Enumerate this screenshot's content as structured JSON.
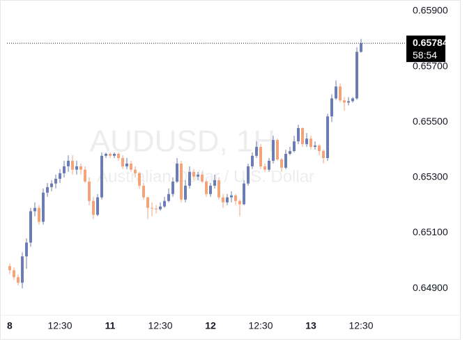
{
  "chart_data": {
    "type": "candlestick",
    "watermark_title": "AUDUSD, 1H",
    "watermark_subtitle": "Australian Dollar / U.S. Dollar",
    "categories": [
      "8",
      null,
      null,
      null,
      null,
      null,
      null,
      null,
      null,
      null,
      null,
      null,
      "12:30",
      null,
      null,
      null,
      null,
      null,
      null,
      null,
      null,
      null,
      null,
      null,
      "11",
      null,
      null,
      null,
      null,
      null,
      null,
      null,
      null,
      null,
      null,
      null,
      "12:30",
      null,
      null,
      null,
      null,
      null,
      null,
      null,
      null,
      null,
      null,
      null,
      "12",
      null,
      null,
      null,
      null,
      null,
      null,
      null,
      null,
      null,
      null,
      null,
      "12:30",
      null,
      null,
      null,
      null,
      null,
      null,
      null,
      null,
      null,
      null,
      null,
      "13",
      null,
      null,
      null,
      null,
      null,
      null,
      null,
      null,
      null,
      null,
      null,
      "12:30"
    ],
    "open": [
      0.6498,
      0.64965,
      0.6494,
      0.6492,
      0.65015,
      0.65065,
      0.65178,
      0.6519,
      0.6514,
      0.65245,
      0.65265,
      0.65278,
      0.65295,
      0.65315,
      0.6534,
      0.6536,
      0.65328,
      0.6534,
      0.65328,
      0.65285,
      0.65215,
      0.65165,
      0.65228,
      0.65378,
      0.65385,
      0.65378,
      0.65385,
      0.6537,
      0.6534,
      0.6535,
      0.65328,
      0.65315,
      0.6527,
      0.65228,
      0.6519,
      0.65188,
      0.65185,
      0.65195,
      0.65215,
      0.6524,
      0.65285,
      0.6535,
      0.6522,
      0.6527,
      0.6532,
      0.65303,
      0.6531,
      0.65285,
      0.6524,
      0.6527,
      0.6529,
      0.65228,
      0.6521,
      0.65228,
      0.65235,
      0.65215,
      0.65203,
      0.65278,
      0.6534,
      0.65378,
      0.6541,
      0.6534,
      0.65328,
      0.6536,
      0.65435,
      0.65365,
      0.65335,
      0.65385,
      0.65395,
      0.6543,
      0.65478,
      0.6542,
      0.6544,
      0.6541,
      0.65415,
      0.65395,
      0.6537,
      0.6552,
      0.65585,
      0.65628,
      0.65578,
      0.6557,
      0.65575,
      0.65585,
      0.65753
    ],
    "high": [
      0.6499,
      0.64975,
      0.6495,
      0.6503,
      0.6508,
      0.6519,
      0.6521,
      0.652,
      0.6526,
      0.6528,
      0.6529,
      0.6531,
      0.6533,
      0.6536,
      0.6538,
      0.6538,
      0.6536,
      0.6535,
      0.6534,
      0.653,
      0.6523,
      0.6524,
      0.6539,
      0.6539,
      0.6539,
      0.6539,
      0.6539,
      0.6538,
      0.6537,
      0.6536,
      0.6534,
      0.6532,
      0.6528,
      0.6523,
      0.6521,
      0.652,
      0.6521,
      0.6523,
      0.6526,
      0.653,
      0.6537,
      0.6536,
      0.6529,
      0.6534,
      0.6533,
      0.6532,
      0.6532,
      0.6529,
      0.6528,
      0.6531,
      0.653,
      0.6524,
      0.6524,
      0.6525,
      0.6524,
      0.6522,
      0.6529,
      0.6535,
      0.6539,
      0.6543,
      0.6542,
      0.6535,
      0.6537,
      0.6545,
      0.6544,
      0.6537,
      0.654,
      0.6541,
      0.6545,
      0.6549,
      0.6548,
      0.6546,
      0.6545,
      0.6543,
      0.6542,
      0.654,
      0.6553,
      0.656,
      0.6565,
      0.6564,
      0.6559,
      0.6559,
      0.6559,
      0.6577,
      0.658
    ],
    "low": [
      0.6495,
      0.6493,
      0.6491,
      0.649,
      0.6497,
      0.6505,
      0.6516,
      0.6513,
      0.6513,
      0.6523,
      0.6525,
      0.6526,
      0.6528,
      0.653,
      0.6532,
      0.6531,
      0.6531,
      0.6531,
      0.6528,
      0.652,
      0.6515,
      0.6516,
      0.6522,
      0.6537,
      0.6537,
      0.6537,
      0.6536,
      0.6533,
      0.6533,
      0.6532,
      0.653,
      0.6526,
      0.6522,
      0.6515,
      0.6516,
      0.6517,
      0.6518,
      0.6519,
      0.6521,
      0.6523,
      0.6528,
      0.6521,
      0.6521,
      0.6526,
      0.6529,
      0.6529,
      0.6528,
      0.6523,
      0.6523,
      0.6526,
      0.6522,
      0.6519,
      0.652,
      0.6521,
      0.652,
      0.6516,
      0.652,
      0.6527,
      0.6533,
      0.6537,
      0.6533,
      0.6532,
      0.6532,
      0.6535,
      0.6536,
      0.6532,
      0.6533,
      0.6538,
      0.6539,
      0.6542,
      0.6541,
      0.6541,
      0.654,
      0.654,
      0.6538,
      0.6535,
      0.6536,
      0.655,
      0.6558,
      0.6557,
      0.6554,
      0.6556,
      0.6557,
      0.6558,
      0.6575
    ],
    "close": [
      0.64965,
      0.6494,
      0.6492,
      0.65015,
      0.65065,
      0.65178,
      0.6519,
      0.6514,
      0.65245,
      0.65265,
      0.65278,
      0.65295,
      0.65315,
      0.6534,
      0.6536,
      0.65328,
      0.6534,
      0.65328,
      0.65285,
      0.65215,
      0.65165,
      0.65228,
      0.65378,
      0.65385,
      0.65378,
      0.65385,
      0.6537,
      0.6534,
      0.6535,
      0.65328,
      0.65315,
      0.6527,
      0.65228,
      0.6519,
      0.65188,
      0.65185,
      0.65195,
      0.65215,
      0.6524,
      0.65285,
      0.6535,
      0.6522,
      0.6527,
      0.6532,
      0.65303,
      0.6531,
      0.65285,
      0.6524,
      0.6527,
      0.6529,
      0.65228,
      0.6521,
      0.65228,
      0.65235,
      0.65215,
      0.65203,
      0.65278,
      0.6534,
      0.65378,
      0.6541,
      0.6534,
      0.65328,
      0.6536,
      0.65435,
      0.65365,
      0.65335,
      0.65385,
      0.65395,
      0.6543,
      0.65478,
      0.6542,
      0.6544,
      0.6541,
      0.65415,
      0.65395,
      0.6537,
      0.6552,
      0.65585,
      0.65628,
      0.65578,
      0.6557,
      0.65575,
      0.65585,
      0.65753,
      0.65784
    ],
    "up_color": "#6b7db3",
    "down_color": "#f3a47b",
    "ylim": [
      0.6481,
      0.6594
    ],
    "yticks": [
      {
        "value": 0.659,
        "label": "0.65900"
      },
      {
        "value": 0.657,
        "label": "0.65700"
      },
      {
        "value": 0.655,
        "label": "0.65500"
      },
      {
        "value": 0.653,
        "label": "0.65300"
      },
      {
        "value": 0.651,
        "label": "0.65100"
      },
      {
        "value": 0.649,
        "label": "0.64900"
      }
    ],
    "last_price": {
      "value": 0.65784,
      "label": "0.65784"
    },
    "countdown": "58:54"
  }
}
